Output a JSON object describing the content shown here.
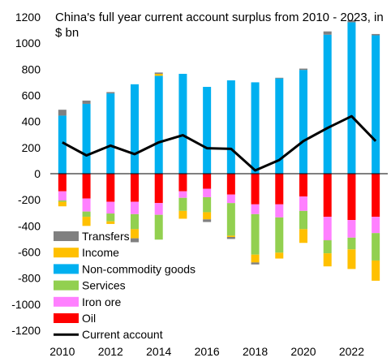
{
  "chart_data": {
    "type": "bar",
    "stacked": true,
    "title": "China's full year current account surplus from 2010 - 2023, in $ bn",
    "xlabel": "",
    "ylabel": "",
    "ylim": [
      -1200,
      1200
    ],
    "yticks": [
      1200,
      1000,
      800,
      600,
      400,
      200,
      0,
      -200,
      -400,
      -600,
      -800,
      -1000,
      -1200
    ],
    "grid": false,
    "legend_position": "bottom-left",
    "x": [
      2010,
      2011,
      2012,
      2013,
      2014,
      2015,
      2016,
      2017,
      2018,
      2019,
      2020,
      2021,
      2022,
      2023
    ],
    "xticks": [
      2010,
      2012,
      2014,
      2016,
      2018,
      2020,
      2022
    ],
    "series": [
      {
        "name": "Transfers",
        "color": "#808080",
        "values": [
          45,
          25,
          10,
          -30,
          10,
          0,
          -20,
          -15,
          -15,
          5,
          10,
          25,
          15,
          10
        ]
      },
      {
        "name": "Income",
        "color": "#FFC000",
        "values": [
          -35,
          -70,
          -20,
          -70,
          15,
          -60,
          -55,
          -10,
          -60,
          -45,
          -105,
          -100,
          -150,
          -155
        ]
      },
      {
        "name": "Non-commodity goods",
        "color": "#00B0F0",
        "values": [
          445,
          535,
          615,
          685,
          750,
          765,
          665,
          715,
          700,
          730,
          795,
          1065,
          1160,
          1060
        ]
      },
      {
        "name": "Services",
        "color": "#92D050",
        "values": [
          -10,
          -40,
          -60,
          -115,
          -190,
          -100,
          -115,
          -250,
          -310,
          -270,
          -140,
          -100,
          -90,
          -210
        ]
      },
      {
        "name": "Iron ore",
        "color": "#FF80FF",
        "values": [
          -70,
          -100,
          -90,
          -95,
          -90,
          -50,
          -65,
          -65,
          -75,
          -100,
          -110,
          -180,
          -135,
          -125
        ]
      },
      {
        "name": "Oil",
        "color": "#FF0000",
        "values": [
          -135,
          -190,
          -215,
          -215,
          -225,
          -135,
          -115,
          -160,
          -235,
          -235,
          -175,
          -330,
          -355,
          -330
        ]
      },
      {
        "name": "Current account",
        "color": "#000000",
        "type": "line",
        "values": [
          240,
          140,
          215,
          150,
          240,
          295,
          195,
          190,
          25,
          105,
          250,
          350,
          440,
          250
        ]
      }
    ]
  }
}
